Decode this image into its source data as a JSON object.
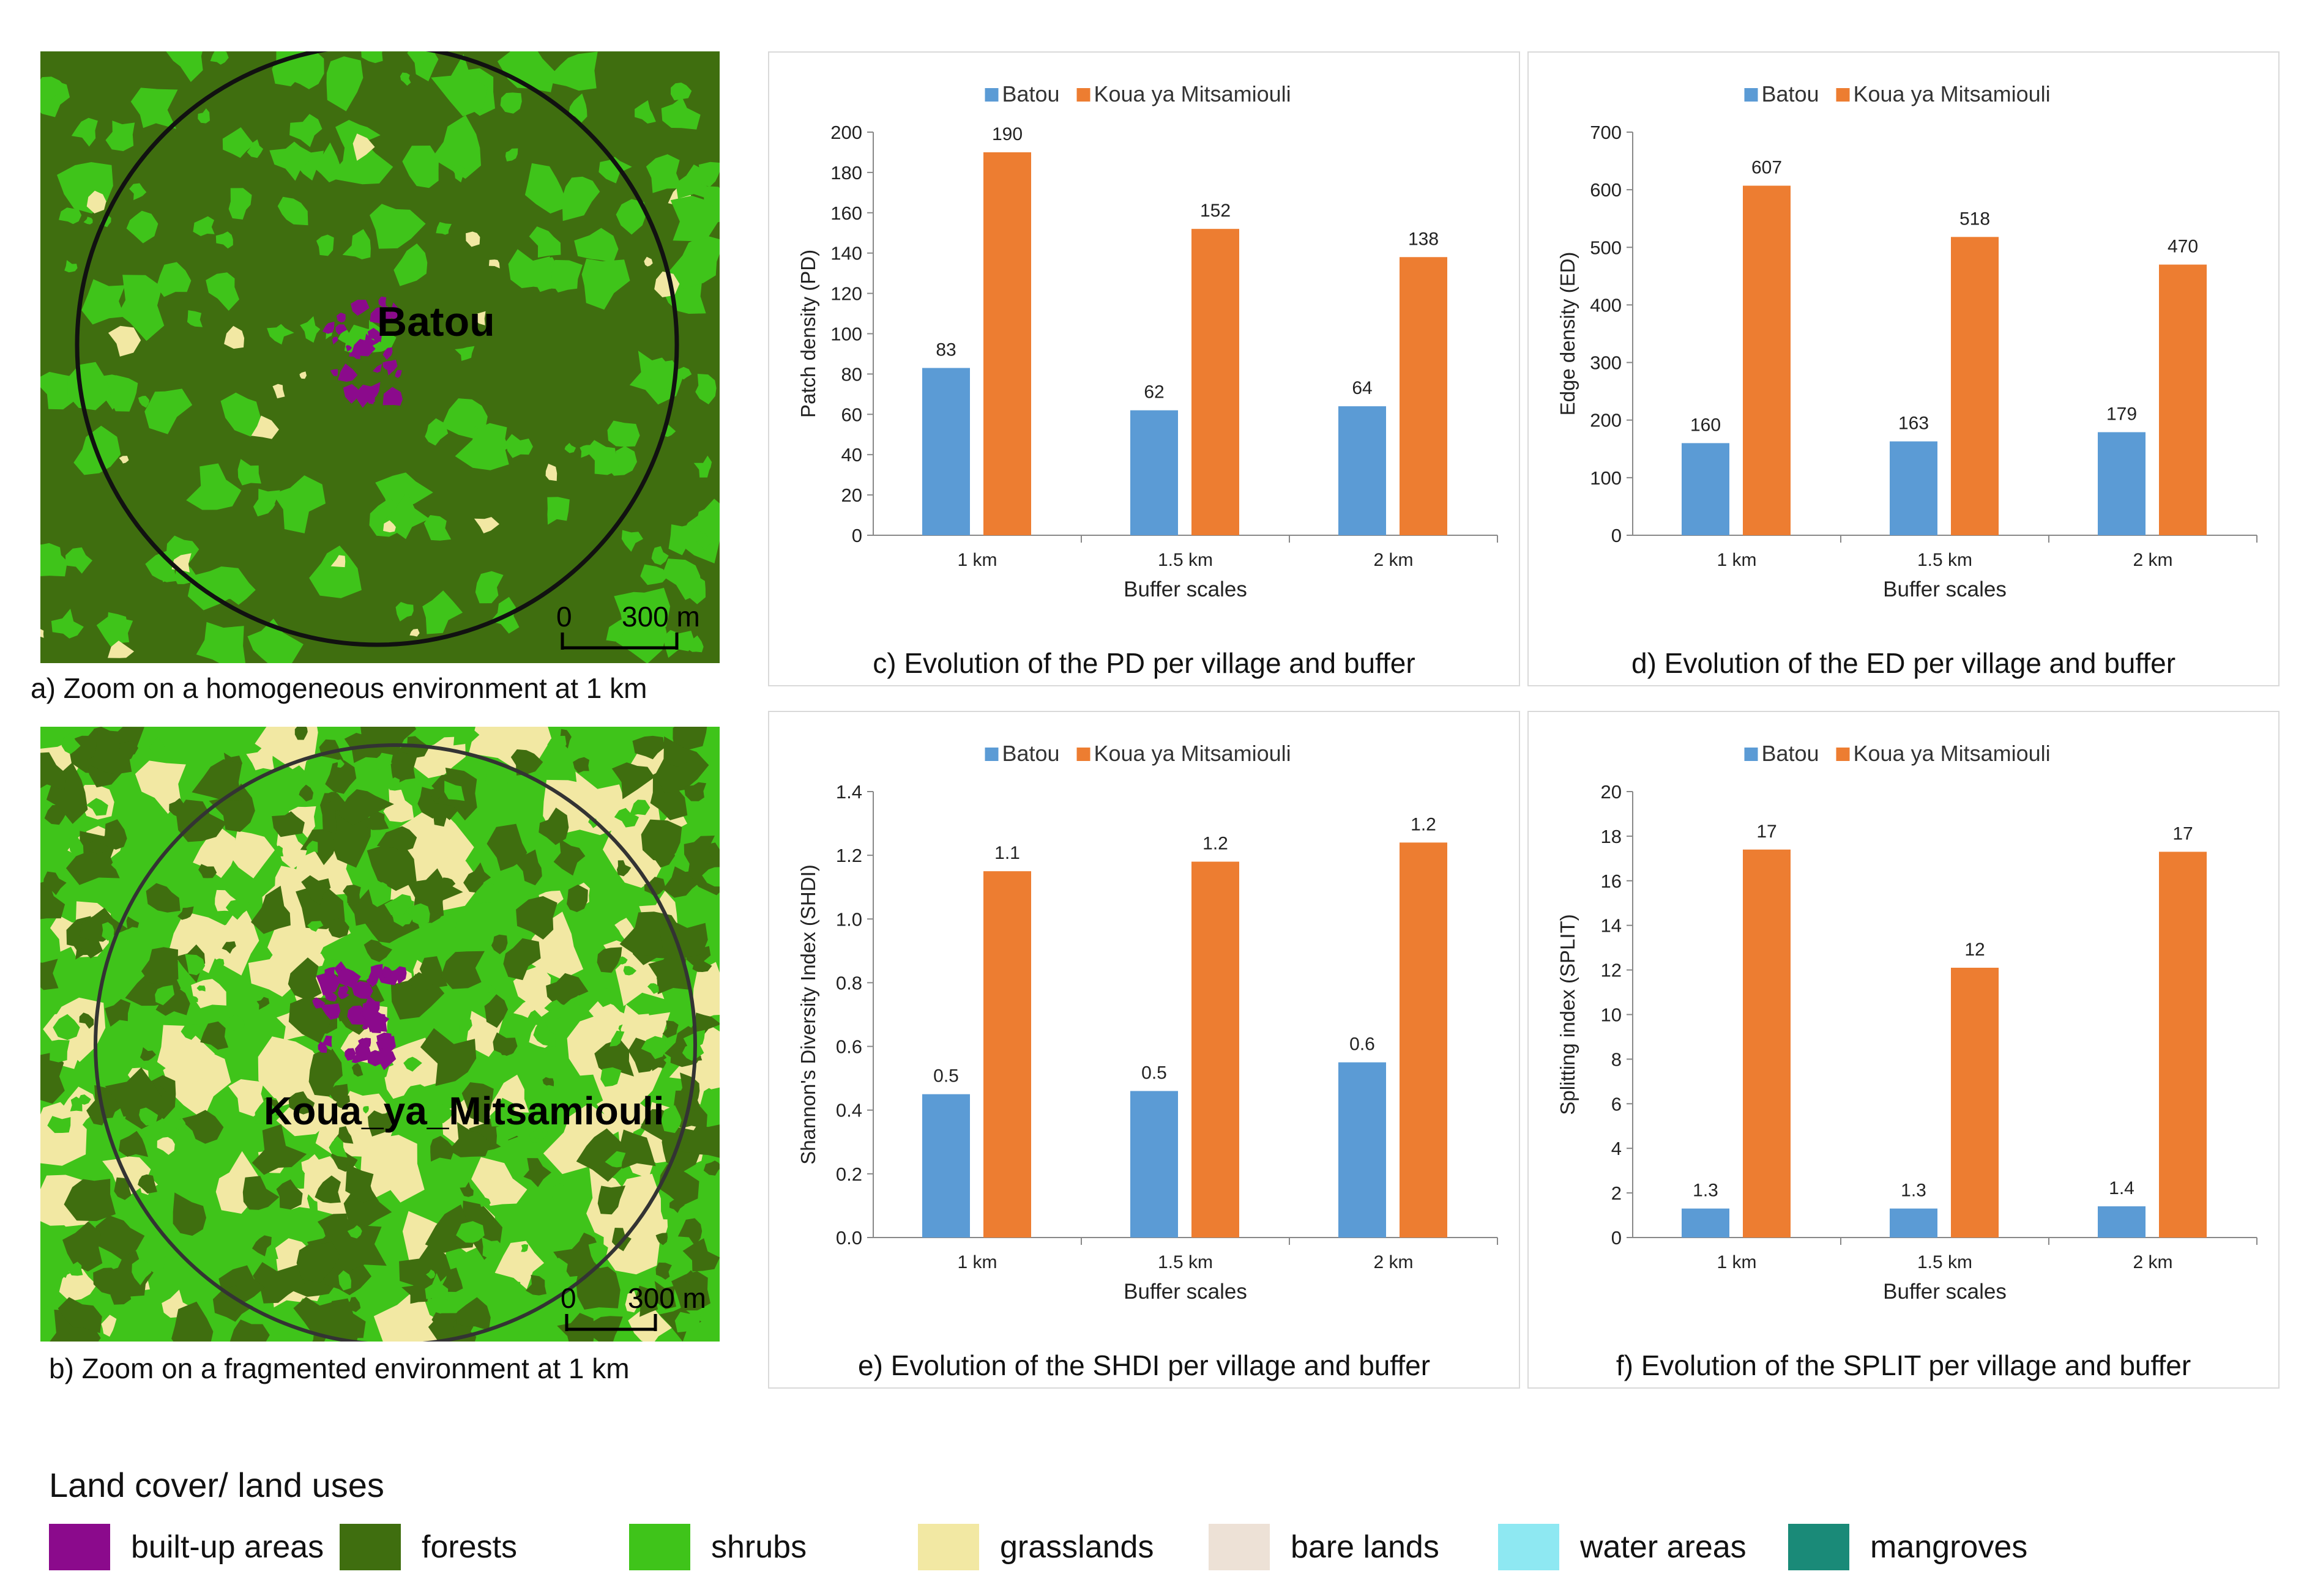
{
  "maps": [
    {
      "id": "a",
      "label": "Batou",
      "scale": {
        "zero": "0",
        "dist": "300 m"
      },
      "caption": "a) Zoom on a homogeneous environment at 1 km"
    },
    {
      "id": "b",
      "label": "Koua_ya_Mitsamiouli",
      "scale": {
        "zero": "0",
        "dist": "300 m"
      },
      "caption": "b) Zoom on a fragmented environment at 1 km"
    }
  ],
  "series_colors": {
    "Batou": "#5b9bd5",
    "Koua ya Mitsamiouli": "#ed7d31"
  },
  "chart_data": [
    {
      "id": "c",
      "type": "bar",
      "legend": [
        "Batou",
        "Koua ya Mitsamiouli"
      ],
      "categories": [
        "1 km",
        "1.5 km",
        "2 km"
      ],
      "series": [
        {
          "name": "Batou",
          "values": [
            83,
            62,
            64
          ],
          "labels": [
            "83",
            "62",
            "64"
          ]
        },
        {
          "name": "Koua ya Mitsamiouli",
          "values": [
            190,
            152,
            138
          ],
          "labels": [
            "190",
            "152",
            "138"
          ]
        }
      ],
      "ylabel": "Patch density (PD)",
      "xlabel": "Buffer scales",
      "ylim": [
        0,
        200
      ],
      "yticks": [
        "0",
        "20",
        "40",
        "60",
        "80",
        "100",
        "120",
        "140",
        "160",
        "180",
        "200"
      ],
      "caption": "c) Evolution of the PD per village and buffer"
    },
    {
      "id": "d",
      "type": "bar",
      "legend": [
        "Batou",
        "Koua ya Mitsamiouli"
      ],
      "categories": [
        "1 km",
        "1.5 km",
        "2 km"
      ],
      "series": [
        {
          "name": "Batou",
          "values": [
            160,
            163,
            179
          ],
          "labels": [
            "160",
            "163",
            "179"
          ]
        },
        {
          "name": "Koua ya Mitsamiouli",
          "values": [
            607,
            518,
            470
          ],
          "labels": [
            "607",
            "518",
            "470"
          ]
        }
      ],
      "ylabel": "Edge density (ED)",
      "xlabel": "Buffer scales",
      "ylim": [
        0,
        700
      ],
      "yticks": [
        "0",
        "100",
        "200",
        "300",
        "400",
        "500",
        "600",
        "700"
      ],
      "caption": "d) Evolution of the ED per village and buffer"
    },
    {
      "id": "e",
      "type": "bar",
      "legend": [
        "Batou",
        "Koua ya Mitsamiouli"
      ],
      "categories": [
        "1 km",
        "1.5 km",
        "2 km"
      ],
      "series": [
        {
          "name": "Batou",
          "values": [
            0.45,
            0.46,
            0.55
          ],
          "labels": [
            "0.5",
            "0.5",
            "0.6"
          ]
        },
        {
          "name": "Koua ya Mitsamiouli",
          "values": [
            1.15,
            1.18,
            1.24
          ],
          "labels": [
            "1.1",
            "1.2",
            "1.2"
          ]
        }
      ],
      "ylabel": "Shannon's Diversity Index (SHDI)",
      "xlabel": "Buffer scales",
      "ylim": [
        0,
        1.4
      ],
      "yticks": [
        "0.0",
        "0.2",
        "0.4",
        "0.6",
        "0.8",
        "1.0",
        "1.2",
        "1.4"
      ],
      "caption": "e) Evolution of the SHDI per village and buffer"
    },
    {
      "id": "f",
      "type": "bar",
      "legend": [
        "Batou",
        "Koua ya Mitsamiouli"
      ],
      "categories": [
        "1 km",
        "1.5 km",
        "2 km"
      ],
      "series": [
        {
          "name": "Batou",
          "values": [
            1.3,
            1.3,
            1.4
          ],
          "labels": [
            "1.3",
            "1.3",
            "1.4"
          ]
        },
        {
          "name": "Koua ya Mitsamiouli",
          "values": [
            17.4,
            12.1,
            17.3
          ],
          "labels": [
            "17",
            "12",
            "17"
          ]
        }
      ],
      "ylabel": "Splitting index (SPLIT)",
      "xlabel": "Buffer scales",
      "ylim": [
        0,
        20
      ],
      "yticks": [
        "0",
        "2",
        "4",
        "6",
        "8",
        "10",
        "12",
        "14",
        "16",
        "18",
        "20"
      ],
      "caption": "f) Evolution of the SPLIT per village and buffer"
    }
  ],
  "legend": {
    "title": "Land cover/ land uses",
    "items": [
      {
        "label": "built-up areas",
        "color": "#8b0a8c"
      },
      {
        "label": "forests",
        "color": "#3f6e0f"
      },
      {
        "label": "shrubs",
        "color": "#3fc41a"
      },
      {
        "label": "grasslands",
        "color": "#f2e8a3"
      },
      {
        "label": "bare lands",
        "color": "#ede1d6"
      },
      {
        "label": "water areas",
        "color": "#8ee8f2"
      },
      {
        "label": "mangroves",
        "color": "#1a8a78"
      }
    ]
  }
}
